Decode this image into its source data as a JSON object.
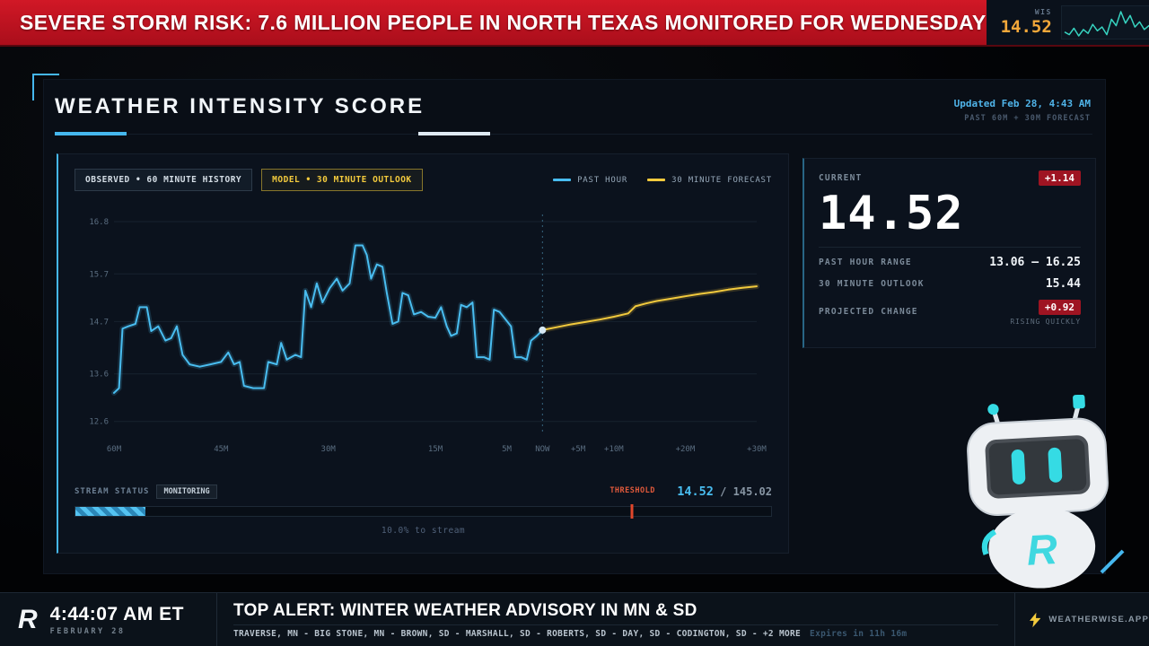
{
  "top_banner": {
    "headline": "SEVERE STORM RISK: 7.6 MILLION PEOPLE IN NORTH TEXAS MONITORED FOR WEDNESDAY",
    "ticker_label": "WIS",
    "ticker_value": "14.52",
    "sparkline": [
      14.6,
      14.4,
      14.9,
      14.3,
      14.8,
      14.5,
      15.2,
      14.7,
      15.0,
      14.4,
      15.6,
      15.1,
      16.2,
      15.3,
      15.9,
      15.0,
      15.4,
      14.8,
      15.1,
      14.6,
      15.0,
      14.5,
      14.8,
      14.52
    ]
  },
  "panel": {
    "title": "WEATHER INTENSITY SCORE",
    "updated": "Updated Feb 28, 4:43 AM",
    "range_note": "PAST 60M + 30M FORECAST"
  },
  "chart": {
    "tabs": [
      {
        "label": "OBSERVED • 60 MINUTE HISTORY"
      },
      {
        "label": "MODEL • 30 MINUTE OUTLOOK"
      }
    ],
    "legend": [
      {
        "label": "PAST HOUR",
        "color": "#49bdf0"
      },
      {
        "label": "30 MINUTE FORECAST",
        "color": "#f2ca3d"
      }
    ]
  },
  "chart_data": {
    "type": "line",
    "title": "WEATHER INTENSITY SCORE",
    "xlim": [
      -60,
      30
    ],
    "ylim": [
      12.35,
      16.95
    ],
    "yticks": [
      16.8,
      15.7,
      14.7,
      13.6,
      12.6
    ],
    "xticks": [
      {
        "pos": -60,
        "label": "60M"
      },
      {
        "pos": -45,
        "label": "45M"
      },
      {
        "pos": -30,
        "label": "30M"
      },
      {
        "pos": -15,
        "label": "15M"
      },
      {
        "pos": -5,
        "label": "5M"
      },
      {
        "pos": 0,
        "label": "NOW"
      },
      {
        "pos": 5,
        "label": "+5M"
      },
      {
        "pos": 10,
        "label": "+10M"
      },
      {
        "pos": 20,
        "label": "+20M"
      },
      {
        "pos": 30,
        "label": "+30M"
      }
    ],
    "now_value": 14.52,
    "series": [
      {
        "name": "PAST HOUR",
        "color": "#49bdf0",
        "points": [
          [
            -60,
            13.2
          ],
          [
            -59.3,
            13.3
          ],
          [
            -58.8,
            14.55
          ],
          [
            -58,
            14.6
          ],
          [
            -57,
            14.65
          ],
          [
            -56.4,
            15.0
          ],
          [
            -55.4,
            15.0
          ],
          [
            -54.8,
            14.5
          ],
          [
            -53.8,
            14.6
          ],
          [
            -52.8,
            14.3
          ],
          [
            -52,
            14.35
          ],
          [
            -51.2,
            14.6
          ],
          [
            -50.4,
            14.0
          ],
          [
            -49.4,
            13.8
          ],
          [
            -48,
            13.75
          ],
          [
            -46.5,
            13.8
          ],
          [
            -45,
            13.85
          ],
          [
            -44,
            14.05
          ],
          [
            -43.2,
            13.8
          ],
          [
            -42.4,
            13.85
          ],
          [
            -41.8,
            13.35
          ],
          [
            -40.5,
            13.3
          ],
          [
            -39,
            13.3
          ],
          [
            -38.4,
            13.85
          ],
          [
            -37.2,
            13.8
          ],
          [
            -36.6,
            14.25
          ],
          [
            -35.8,
            13.9
          ],
          [
            -34.6,
            14.0
          ],
          [
            -33.8,
            13.95
          ],
          [
            -33.2,
            15.35
          ],
          [
            -32.4,
            15.0
          ],
          [
            -31.6,
            15.5
          ],
          [
            -30.8,
            15.1
          ],
          [
            -29.8,
            15.4
          ],
          [
            -28.8,
            15.6
          ],
          [
            -28,
            15.35
          ],
          [
            -27,
            15.5
          ],
          [
            -26.2,
            16.3
          ],
          [
            -25.2,
            16.3
          ],
          [
            -24.6,
            16.1
          ],
          [
            -24,
            15.6
          ],
          [
            -23.2,
            15.9
          ],
          [
            -22.4,
            15.85
          ],
          [
            -21.8,
            15.3
          ],
          [
            -21,
            14.65
          ],
          [
            -20.2,
            14.7
          ],
          [
            -19.6,
            15.3
          ],
          [
            -18.8,
            15.25
          ],
          [
            -18,
            14.85
          ],
          [
            -17,
            14.9
          ],
          [
            -16,
            14.8
          ],
          [
            -15,
            14.78
          ],
          [
            -14.2,
            15.0
          ],
          [
            -13.4,
            14.6
          ],
          [
            -12.8,
            14.4
          ],
          [
            -12,
            14.45
          ],
          [
            -11.4,
            15.05
          ],
          [
            -10.6,
            15.0
          ],
          [
            -9.8,
            15.1
          ],
          [
            -9.2,
            13.95
          ],
          [
            -8.2,
            13.95
          ],
          [
            -7.4,
            13.9
          ],
          [
            -6.8,
            14.95
          ],
          [
            -6,
            14.9
          ],
          [
            -5.2,
            14.75
          ],
          [
            -4.4,
            14.6
          ],
          [
            -3.8,
            13.95
          ],
          [
            -3,
            13.95
          ],
          [
            -2.2,
            13.9
          ],
          [
            -1.6,
            14.3
          ],
          [
            -0.8,
            14.4
          ],
          [
            0,
            14.52
          ]
        ]
      },
      {
        "name": "30 MINUTE FORECAST",
        "color": "#f2ca3d",
        "points": [
          [
            0,
            14.52
          ],
          [
            2,
            14.58
          ],
          [
            4,
            14.64
          ],
          [
            6,
            14.69
          ],
          [
            8,
            14.74
          ],
          [
            10,
            14.8
          ],
          [
            12,
            14.87
          ],
          [
            13,
            15.02
          ],
          [
            14.5,
            15.08
          ],
          [
            16,
            15.13
          ],
          [
            18,
            15.18
          ],
          [
            20,
            15.23
          ],
          [
            22,
            15.28
          ],
          [
            24,
            15.32
          ],
          [
            26,
            15.37
          ],
          [
            28,
            15.41
          ],
          [
            30,
            15.44
          ]
        ]
      }
    ]
  },
  "stream": {
    "label": "STREAM STATUS",
    "status": "MONITORING",
    "threshold_label": "THRESHOLD",
    "current_value": "14.52",
    "separator": "/",
    "max_value": "145.02",
    "progress_note": "10.0% to stream",
    "fill_percent": 10,
    "threshold_percent": 80
  },
  "stats": {
    "current_label": "CURRENT",
    "change_badge": "+1.14",
    "current_value": "14.52",
    "rows": [
      {
        "label": "PAST HOUR RANGE",
        "value": "13.06 – 16.25"
      },
      {
        "label": "30 MINUTE OUTLOOK",
        "value": "15.44"
      }
    ],
    "projected_label": "PROJECTED CHANGE",
    "projected_badge": "+0.92",
    "projected_note": "RISING QUICKLY"
  },
  "mascot": {
    "letter": "R"
  },
  "footer": {
    "logo": "R",
    "time": "4:44:07 AM ET",
    "date": "FEBRUARY 28",
    "alert_title": "TOP ALERT: WINTER WEATHER ADVISORY IN MN & SD",
    "locations": "TRAVERSE, MN - BIG STONE, MN - BROWN, SD - MARSHALL, SD - ROBERTS, SD - DAY, SD - CODINGTON, SD - +2 MORE",
    "expires": "Expires in 11h 16m",
    "brand": "WEATHERWISE.APP"
  }
}
